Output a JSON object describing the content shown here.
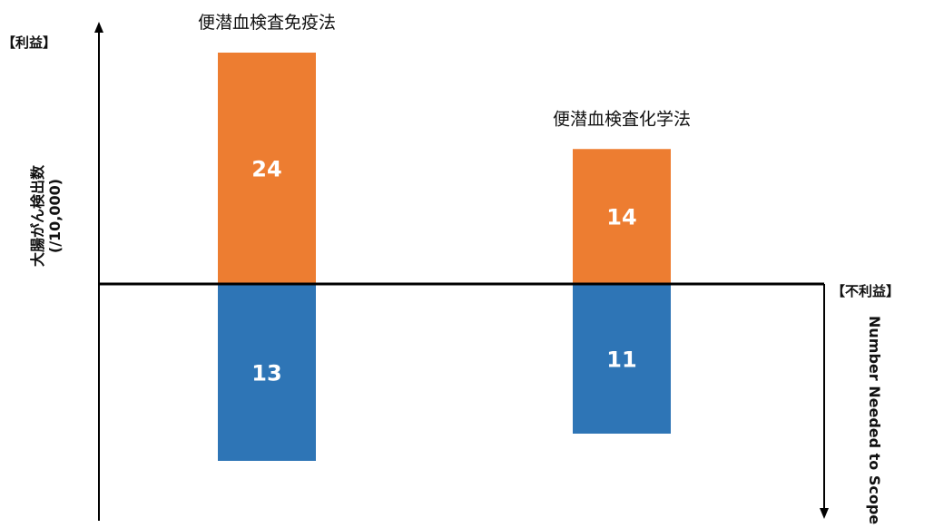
{
  "chart_data": {
    "type": "bar",
    "categories": [
      "便潜血検査免疫法",
      "便潜血検査化学法"
    ],
    "series": [
      {
        "values": [
          24,
          14
        ],
        "color": "#ED7D31"
      },
      {
        "values": [
          13,
          11
        ],
        "color": "#2E75B6"
      }
    ],
    "benefit_label": "【利益】",
    "harm_label": "【不利益】",
    "ylabel_benefit": "大腸がん検出数",
    "ylabel_benefit_unit": "(/10,000)",
    "ylabel_harm": "Number Needed to Scope",
    "grid": false
  }
}
